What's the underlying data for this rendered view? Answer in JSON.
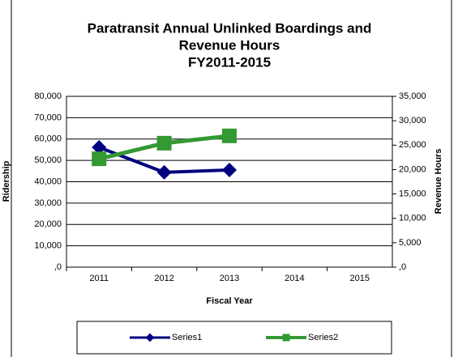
{
  "chart_data": {
    "type": "line",
    "title": [
      "Paratransit Annual Unlinked Boardings and",
      "Revenue Hours",
      "FY2011-2015"
    ],
    "x_label": "Fiscal Year",
    "y_label": "Ridership",
    "y2_label": "Revenue Hours",
    "categories": [
      "2011",
      "2012",
      "2013",
      "2014",
      "2015"
    ],
    "series": [
      {
        "name": "Series1",
        "color": "#000080",
        "marker": "diamond",
        "values": [
          56100,
          44400,
          45500,
          null,
          null
        ]
      },
      {
        "name": "Series2",
        "color": "#339933",
        "marker": "square",
        "axis": "y2",
        "values": [
          22200,
          25400,
          26900,
          null,
          null
        ]
      }
    ],
    "ylim": [
      0,
      80000
    ],
    "yticks": [
      {
        "value": 0,
        "label": ",0"
      },
      {
        "value": 10000,
        "label": "10,000"
      },
      {
        "value": 20000,
        "label": "20,000"
      },
      {
        "value": 30000,
        "label": "30,000"
      },
      {
        "value": 40000,
        "label": "40,000"
      },
      {
        "value": 50000,
        "label": "50,000"
      },
      {
        "value": 60000,
        "label": "60,000"
      },
      {
        "value": 70000,
        "label": "70,000"
      },
      {
        "value": 80000,
        "label": "80,000"
      }
    ],
    "y2lim": [
      0,
      35000
    ],
    "y2ticks": [
      {
        "value": 0,
        "label": ",0"
      },
      {
        "value": 5000,
        "label": "5,000"
      },
      {
        "value": 10000,
        "label": "10,000"
      },
      {
        "value": 15000,
        "label": "15,000"
      },
      {
        "value": 20000,
        "label": "20,000"
      },
      {
        "value": 25000,
        "label": "25,000"
      },
      {
        "value": 30000,
        "label": "30,000"
      },
      {
        "value": 35000,
        "label": "35,000"
      }
    ],
    "grid": true,
    "legend": "bottom"
  }
}
